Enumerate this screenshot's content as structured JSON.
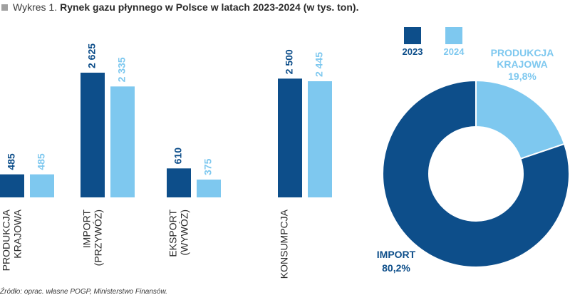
{
  "header": {
    "prefix": "Wykres 1.",
    "title": "Rynek gazu płynnego w Polsce w latach 2023-2024 (w tys. ton)."
  },
  "footer": {
    "source": "Źródło: oprac. własne POGP, Ministerstwo Finansów."
  },
  "colors": {
    "y2023": "#0d4e8a",
    "y2024": "#7ec8ef",
    "text_dark": "#2b2b2b"
  },
  "chart_data": [
    {
      "type": "bar",
      "categories": [
        [
          "PRODUKCJA",
          "KRAJOWA"
        ],
        [
          "IMPORT",
          "(PRZYWÓZ)"
        ],
        [
          "EKSPORT",
          "(WYWÓZ)"
        ],
        [
          "KONSUMPCJA"
        ]
      ],
      "series": [
        {
          "name": "2023",
          "values": [
            485,
            2625,
            610,
            2500
          ],
          "labels": [
            "485",
            "2 625",
            "610",
            "2 500"
          ]
        },
        {
          "name": "2024",
          "values": [
            485,
            2335,
            375,
            2445
          ],
          "labels": [
            "485",
            "2 335",
            "375",
            "2 445"
          ]
        }
      ],
      "legend": {
        "placement": "top-right"
      }
    },
    {
      "type": "pie",
      "variant": "donut",
      "slices": [
        {
          "name": [
            "PRODUKCJA",
            "KRAJOWA"
          ],
          "value": 19.8,
          "label": "19,8%",
          "color": "#7ec8ef"
        },
        {
          "name": [
            "IMPORT"
          ],
          "value": 80.2,
          "label": "80,2%",
          "color": "#0d4e8a"
        }
      ]
    }
  ]
}
